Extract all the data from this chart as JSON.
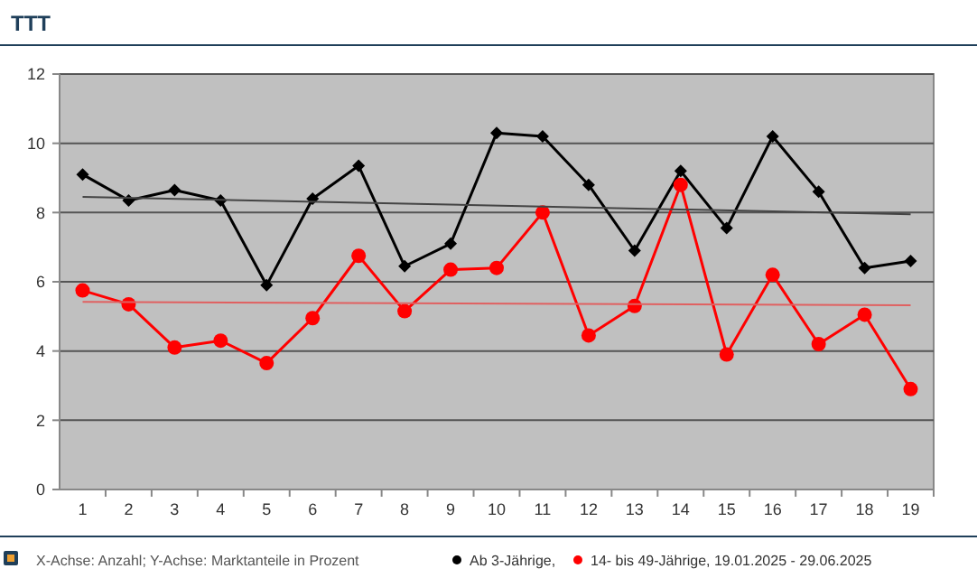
{
  "chart_data": {
    "type": "line",
    "title": "TTT",
    "categories": [
      "1",
      "2",
      "3",
      "4",
      "5",
      "6",
      "7",
      "8",
      "9",
      "10",
      "11",
      "12",
      "13",
      "14",
      "15",
      "16",
      "17",
      "18",
      "19"
    ],
    "series": [
      {
        "name": "Ab 3-Jährige,",
        "color": "#000000",
        "marker": "diamond",
        "values": [
          9.1,
          8.35,
          8.65,
          8.35,
          5.9,
          8.4,
          9.35,
          6.45,
          7.1,
          10.3,
          10.2,
          8.8,
          6.9,
          9.2,
          7.55,
          10.2,
          8.6,
          6.4,
          6.6
        ]
      },
      {
        "name": "14- bis 49-Jährige, 19.01.2025 - 29.06.2025",
        "color": "#ff0000",
        "marker": "circle",
        "values": [
          5.75,
          5.35,
          4.1,
          4.3,
          3.65,
          4.95,
          6.75,
          5.15,
          6.35,
          6.4,
          8.0,
          4.45,
          5.3,
          8.8,
          3.9,
          6.2,
          4.2,
          5.05,
          2.9
        ]
      },
      {
        "type": "line",
        "color": "#444444",
        "marker": "none",
        "x": [
          "1",
          "19"
        ],
        "values": [
          8.45,
          7.95
        ]
      },
      {
        "type": "line",
        "color": "#e06060",
        "marker": "none",
        "x": [
          "1",
          "19"
        ],
        "values": [
          5.42,
          5.32
        ]
      }
    ],
    "ylim": [
      0,
      12
    ],
    "yticks": [
      0,
      2,
      4,
      6,
      8,
      10,
      12
    ],
    "grid": "y",
    "legend": "bottom",
    "line_style": "solid",
    "annotations": [
      "X-Achse: Anzahl; Y-Achse: Marktanteile in Prozent"
    ]
  }
}
